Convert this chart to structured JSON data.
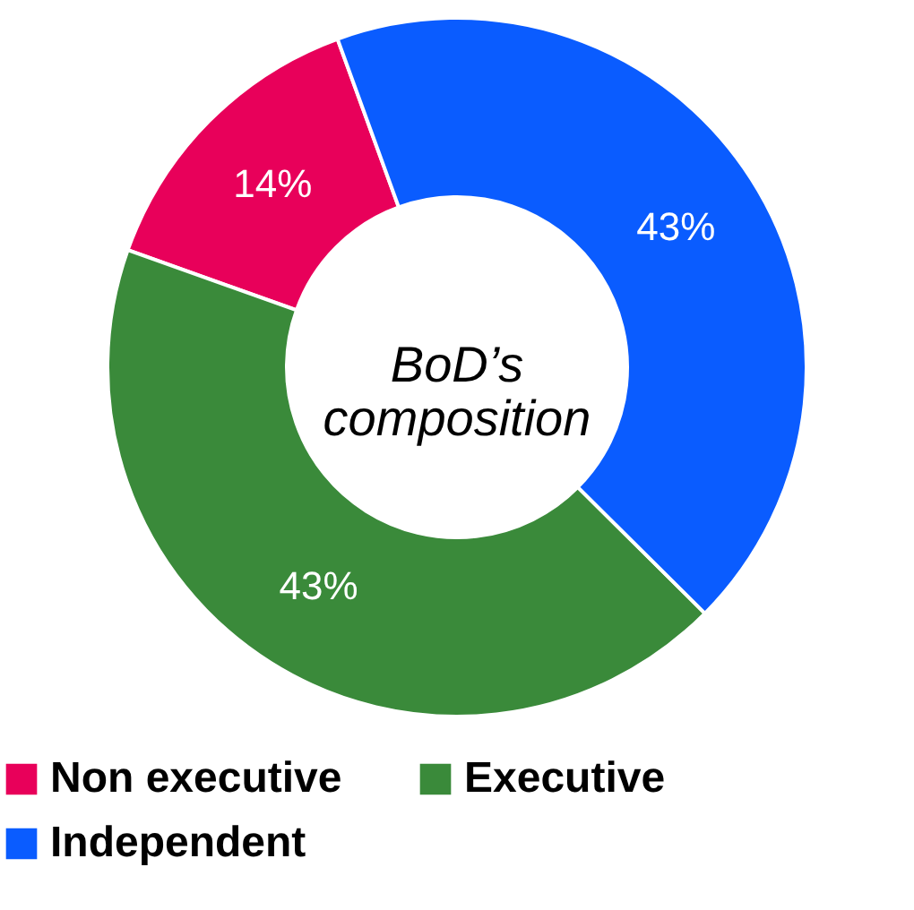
{
  "chart_data": {
    "type": "donut",
    "title": "BoD’s composition",
    "categories": [
      "Non executive",
      "Executive",
      "Independent"
    ],
    "values": [
      14,
      43,
      43
    ],
    "colors": [
      "#e8005a",
      "#3a8a3a",
      "#0a5cff"
    ],
    "value_labels": [
      "14%",
      "43%",
      "43%"
    ],
    "legend": "bottom"
  }
}
